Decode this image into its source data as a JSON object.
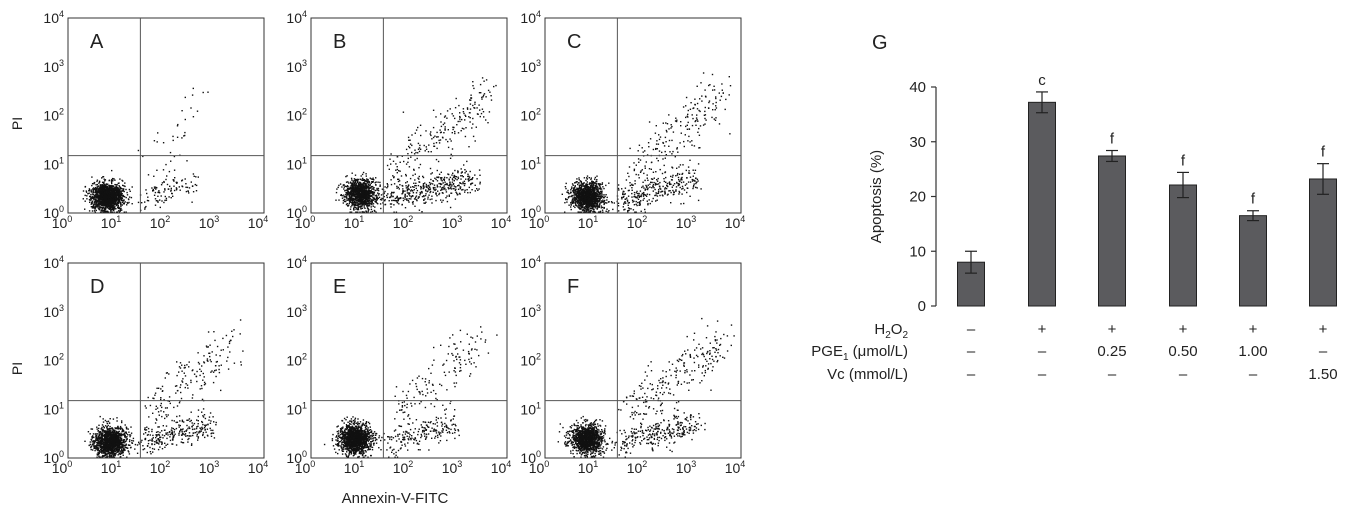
{
  "colors": {
    "axis": "#333333",
    "dot": "#111111",
    "quadrant_line": "#555555",
    "bar_fill": "#5b5b5e",
    "bar_stroke": "#222222"
  },
  "flow_common": {
    "x_axis_label": "Annexin-V-FITC",
    "y_axis_label": "PI",
    "tick_base": "10",
    "tick_exponents": [
      "0",
      "1",
      "2",
      "3",
      "4"
    ],
    "scale": "log",
    "x_range": [
      1,
      10000
    ],
    "y_range": [
      1,
      10000
    ],
    "quadrant_gate": {
      "x": 30,
      "y": 15
    }
  },
  "chart_data": [
    {
      "type": "scatter",
      "panel_label": "A",
      "population": {
        "live": 0.92,
        "early": 0.06,
        "late": 0.02,
        "live_center_log": [
          0.8,
          0.35
        ],
        "live_spread_log": [
          0.16,
          0.14
        ],
        "early_x_log": [
          1.5,
          2.6
        ],
        "late_x_log": [
          1.6,
          2.7
        ]
      }
    },
    {
      "type": "scatter",
      "panel_label": "B",
      "population": {
        "live": 0.62,
        "early": 0.24,
        "late": 0.14,
        "live_center_log": [
          1.0,
          0.4
        ],
        "live_spread_log": [
          0.16,
          0.15
        ],
        "early_x_log": [
          1.5,
          3.3
        ],
        "late_x_log": [
          1.7,
          3.6
        ]
      }
    },
    {
      "type": "scatter",
      "panel_label": "C",
      "population": {
        "live": 0.7,
        "early": 0.18,
        "late": 0.12,
        "live_center_log": [
          0.85,
          0.35
        ],
        "live_spread_log": [
          0.16,
          0.15
        ],
        "early_x_log": [
          1.5,
          3.1
        ],
        "late_x_log": [
          1.8,
          3.6
        ]
      }
    },
    {
      "type": "scatter",
      "panel_label": "D",
      "population": {
        "live": 0.75,
        "early": 0.15,
        "late": 0.1,
        "live_center_log": [
          0.85,
          0.35
        ],
        "live_spread_log": [
          0.17,
          0.15
        ],
        "early_x_log": [
          1.5,
          2.9
        ],
        "late_x_log": [
          1.6,
          3.4
        ]
      }
    },
    {
      "type": "scatter",
      "panel_label": "E",
      "population": {
        "live": 0.8,
        "early": 0.12,
        "late": 0.08,
        "live_center_log": [
          0.9,
          0.4
        ],
        "live_spread_log": [
          0.16,
          0.15
        ],
        "early_x_log": [
          1.5,
          2.9
        ],
        "late_x_log": [
          1.7,
          3.5
        ]
      }
    },
    {
      "type": "scatter",
      "panel_label": "F",
      "population": {
        "live": 0.7,
        "early": 0.16,
        "late": 0.14,
        "live_center_log": [
          0.85,
          0.4
        ],
        "live_spread_log": [
          0.16,
          0.15
        ],
        "early_x_log": [
          1.5,
          3.1
        ],
        "late_x_log": [
          1.7,
          3.6
        ]
      }
    },
    {
      "type": "bar",
      "panel_label": "G",
      "ylabel": "Apoptosis (%)",
      "ylim": [
        0,
        40
      ],
      "yticks": [
        0,
        10,
        20,
        30,
        40
      ],
      "values": [
        8.0,
        37.2,
        27.4,
        22.1,
        16.5,
        23.2
      ],
      "errors": [
        2.0,
        1.9,
        1.0,
        2.3,
        0.9,
        2.8
      ],
      "significance": [
        "",
        "c",
        "f",
        "f",
        "f",
        "f"
      ],
      "condition_rows": [
        {
          "label_main": "H",
          "label_sub": "2",
          "label_main2": "O",
          "label_sub2": "2",
          "label_rest": "",
          "values": [
            "–",
            "+",
            "+",
            "+",
            "+",
            "+"
          ]
        },
        {
          "label_main": "PGE",
          "label_sub": "1",
          "label_main2": "",
          "label_sub2": "",
          "label_rest": " (μmol/L)",
          "values": [
            "–",
            "–",
            "0.25",
            "0.50",
            "1.00",
            "–"
          ]
        },
        {
          "label_main": "Vc (mmol/L)",
          "label_sub": "",
          "label_main2": "",
          "label_sub2": "",
          "label_rest": "",
          "values": [
            "–",
            "–",
            "–",
            "–",
            "–",
            "1.50"
          ]
        }
      ]
    }
  ]
}
